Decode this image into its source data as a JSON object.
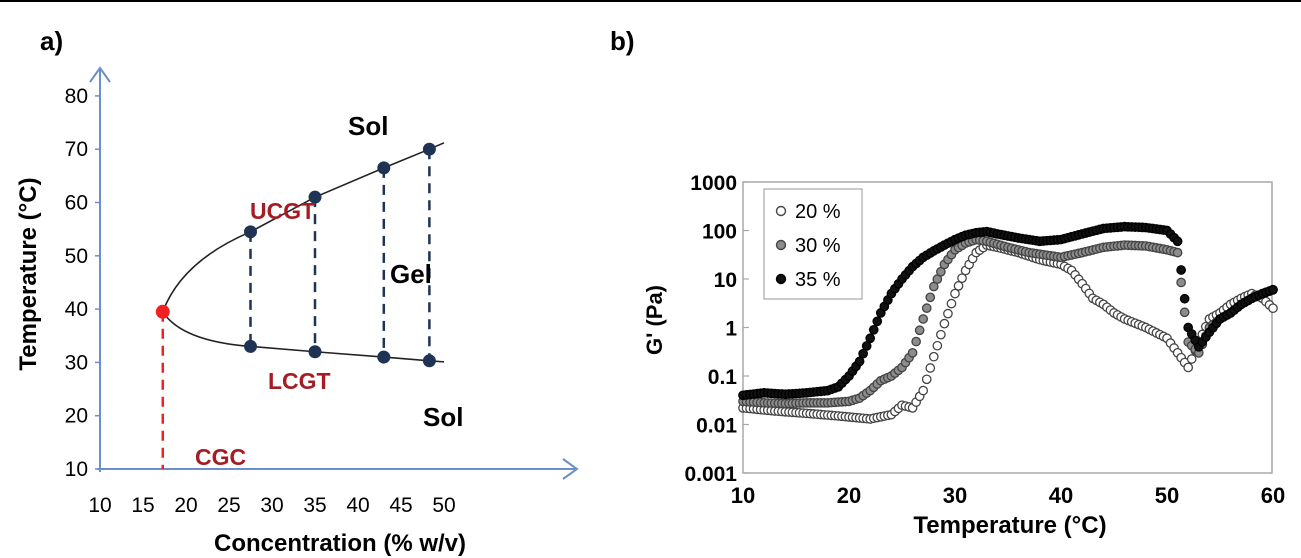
{
  "panel_a_label": "a)",
  "panel_b_label": "b)",
  "chart_data": [
    {
      "panel": "a)",
      "type": "line",
      "xlabel": "Concentration (% w/v)",
      "ylabel": "Temperature (°C)",
      "xlim": [
        10,
        50
      ],
      "ylim": [
        10,
        80
      ],
      "x_ticks": [
        10,
        15,
        20,
        25,
        30,
        35,
        40,
        45,
        50
      ],
      "y_ticks": [
        10,
        20,
        30,
        40,
        50,
        60,
        70,
        80
      ],
      "grid": false,
      "series": [
        {
          "name": "UCGT",
          "x": [
            27.5,
            35,
            43,
            48.3
          ],
          "y": [
            54.5,
            61,
            66.5,
            70
          ]
        },
        {
          "name": "LCGT",
          "x": [
            27.5,
            35,
            43,
            48.3
          ],
          "y": [
            33,
            32,
            31,
            30.3
          ]
        }
      ],
      "cgc_point": {
        "x": 17.3,
        "y": 39.5
      },
      "annotations": [
        "Sol",
        "Sol",
        "Gel",
        "UCGT",
        "LCGT",
        "CGC"
      ],
      "colors": {
        "curve": "#222222",
        "point": "#1f3454",
        "cgc": "#ee2222",
        "label_red": "#a51c24",
        "axis": "#6d8fc9"
      }
    },
    {
      "panel": "b)",
      "type": "scatter",
      "xlabel": "Temperature (°C)",
      "ylabel": "G' (Pa)",
      "xlim": [
        10,
        60
      ],
      "ylim": [
        0.001,
        1000
      ],
      "log_y": true,
      "x_ticks": [
        10,
        20,
        30,
        40,
        50,
        60
      ],
      "y_ticks": [
        "0.001",
        "0.01",
        "0.1",
        "1",
        "10",
        "100",
        "1000"
      ],
      "grid": false,
      "legend_position": "top-left",
      "series": [
        {
          "name": "20 %",
          "marker": "open-circle",
          "x": [
            10,
            13,
            16,
            19,
            22,
            24,
            25,
            26,
            27,
            28,
            29,
            30,
            31,
            32,
            33,
            34,
            36,
            38,
            40,
            41,
            42,
            43,
            44,
            45,
            46,
            48,
            50,
            51,
            52,
            53,
            54,
            55,
            56,
            57,
            58,
            59,
            60
          ],
          "y": [
            0.022,
            0.019,
            0.017,
            0.015,
            0.013,
            0.016,
            0.025,
            0.022,
            0.05,
            0.25,
            1.2,
            5,
            15,
            35,
            50,
            45,
            35,
            25,
            20,
            15,
            8,
            4,
            3,
            2,
            1.5,
            1,
            0.6,
            0.3,
            0.15,
            0.5,
            1.5,
            2,
            3,
            4,
            5,
            4,
            2.5
          ]
        },
        {
          "name": "30 %",
          "marker": "grey-circle",
          "x": [
            10,
            12,
            14,
            16,
            18,
            20,
            21,
            22,
            23,
            24,
            25,
            26,
            27,
            28,
            29,
            30,
            31,
            32,
            33,
            35,
            37,
            40,
            42,
            44,
            46,
            48,
            50,
            51,
            52,
            53,
            54,
            55,
            56,
            57,
            58,
            59,
            60
          ],
          "y": [
            0.03,
            0.028,
            0.027,
            0.028,
            0.028,
            0.03,
            0.035,
            0.05,
            0.08,
            0.1,
            0.15,
            0.3,
            1.5,
            7,
            20,
            40,
            55,
            65,
            60,
            45,
            35,
            28,
            35,
            45,
            50,
            48,
            40,
            35,
            0.5,
            0.3,
            1,
            1.5,
            2,
            3,
            4,
            5,
            6
          ]
        },
        {
          "name": "35 %",
          "marker": "filled-circle",
          "x": [
            10,
            12,
            14,
            16,
            18,
            19,
            20,
            21,
            22,
            23,
            24,
            25,
            26,
            27,
            28,
            29,
            30,
            31,
            32,
            33,
            34,
            36,
            38,
            40,
            42,
            44,
            46,
            48,
            50,
            51,
            52,
            53,
            54,
            55,
            56,
            57,
            58,
            59,
            60
          ],
          "y": [
            0.04,
            0.045,
            0.042,
            0.045,
            0.05,
            0.06,
            0.1,
            0.2,
            0.6,
            2,
            5,
            10,
            18,
            28,
            38,
            50,
            65,
            80,
            90,
            95,
            85,
            70,
            60,
            65,
            85,
            110,
            120,
            115,
            100,
            60,
            1,
            0.4,
            0.8,
            1.5,
            2,
            3,
            4,
            5,
            6
          ]
        }
      ],
      "colors": {
        "open": "#ffffff",
        "grey": "#8c8c8c",
        "filled": "#111111",
        "frame": "#a8a8a8"
      }
    }
  ]
}
